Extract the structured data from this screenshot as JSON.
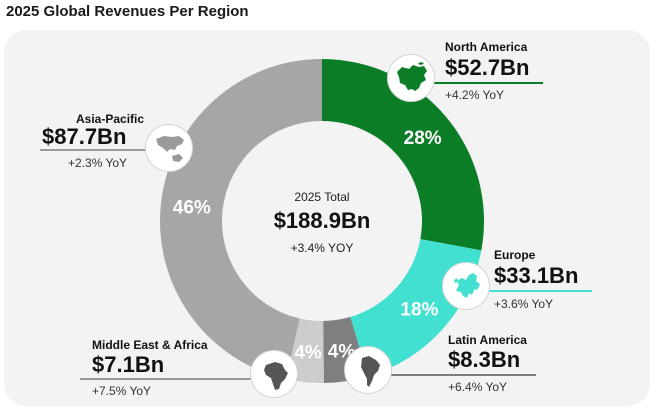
{
  "page": {
    "title": "2025 Global Revenues Per Region"
  },
  "center": {
    "title": "2025 Total",
    "value": "$188.9Bn",
    "yoy": "+3.4% YOY"
  },
  "colors": {
    "north_america": "#0b7d27",
    "europe": "#42e0d0",
    "latin_america": "#7f7f7f",
    "middle_east_africa": "#cccccc",
    "asia_pacific": "#a6a6a6",
    "line_dark": "#0b7d27",
    "line_gray": "#9a9a9a"
  },
  "regions": {
    "north_america": {
      "name": "North America",
      "value": "$52.7Bn",
      "yoy": "+4.2% YoY",
      "icon": "north-america-map-icon"
    },
    "europe": {
      "name": "Europe",
      "value": "$33.1Bn",
      "yoy": "+3.6% YoY",
      "icon": "europe-map-icon"
    },
    "latin_america": {
      "name": "Latin America",
      "value": "$8.3Bn",
      "yoy": "+6.4% YoY",
      "icon": "south-america-map-icon"
    },
    "middle_east_africa": {
      "name": "Middle East & Africa",
      "value": "$7.1Bn",
      "yoy": "+7.5% YoY",
      "icon": "africa-map-icon"
    },
    "asia_pacific": {
      "name": "Asia-Pacific",
      "value": "$87.7Bn",
      "yoy": "+2.3% YoY",
      "icon": "asia-pacific-map-icon"
    }
  },
  "chart_data": {
    "type": "pie",
    "title": "2025 Global Revenues Per Region",
    "categories": [
      "North America",
      "Europe",
      "Latin America",
      "Middle East & Africa",
      "Asia-Pacific"
    ],
    "values": [
      52.7,
      33.1,
      8.3,
      7.1,
      87.7
    ],
    "units": "$Bn",
    "percent_labels": [
      "28%",
      "18%",
      "4%",
      "4%",
      "46%"
    ],
    "yoy": [
      "+4.2%",
      "+3.6%",
      "+6.4%",
      "+7.5%",
      "+2.3%"
    ],
    "total": 188.9,
    "total_yoy": "+3.4%"
  }
}
